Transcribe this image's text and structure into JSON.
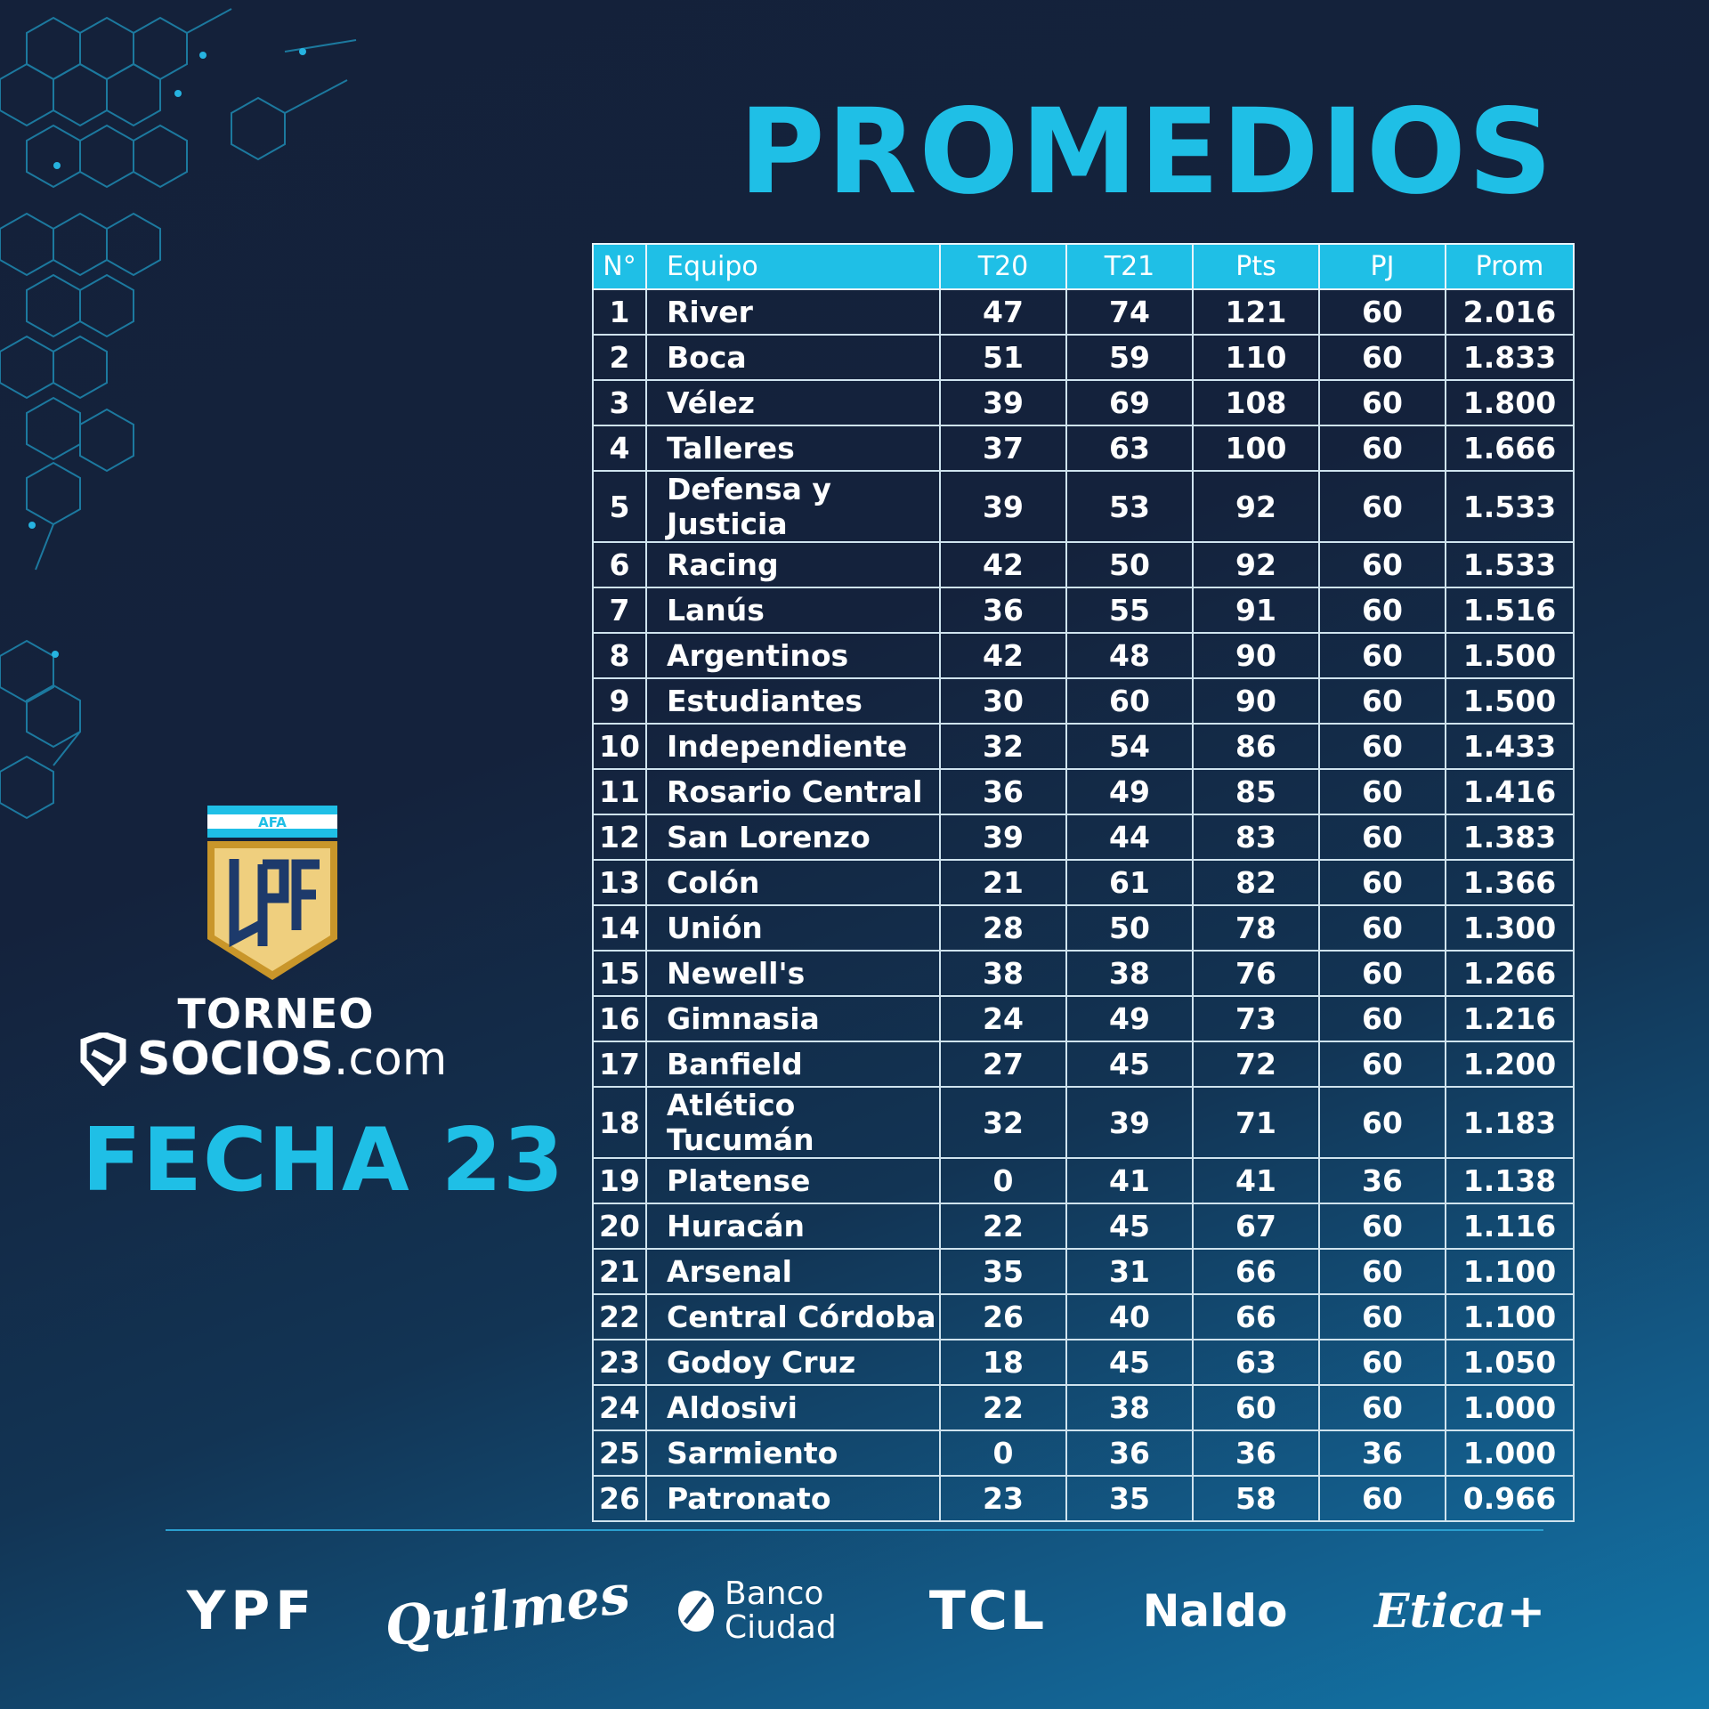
{
  "title": "PROMEDIOS",
  "table": {
    "headers": [
      "N°",
      "Equipo",
      "T20",
      "T21",
      "Pts",
      "PJ",
      "Prom"
    ],
    "rows": [
      [
        "1",
        "River",
        "47",
        "74",
        "121",
        "60",
        "2.016"
      ],
      [
        "2",
        "Boca",
        "51",
        "59",
        "110",
        "60",
        "1.833"
      ],
      [
        "3",
        "Vélez",
        "39",
        "69",
        "108",
        "60",
        "1.800"
      ],
      [
        "4",
        "Talleres",
        "37",
        "63",
        "100",
        "60",
        "1.666"
      ],
      [
        "5",
        "Defensa y Justicia",
        "39",
        "53",
        "92",
        "60",
        "1.533"
      ],
      [
        "6",
        "Racing",
        "42",
        "50",
        "92",
        "60",
        "1.533"
      ],
      [
        "7",
        "Lanús",
        "36",
        "55",
        "91",
        "60",
        "1.516"
      ],
      [
        "8",
        "Argentinos",
        "42",
        "48",
        "90",
        "60",
        "1.500"
      ],
      [
        "9",
        "Estudiantes",
        "30",
        "60",
        "90",
        "60",
        "1.500"
      ],
      [
        "10",
        "Independiente",
        "32",
        "54",
        "86",
        "60",
        "1.433"
      ],
      [
        "11",
        "Rosario Central",
        "36",
        "49",
        "85",
        "60",
        "1.416"
      ],
      [
        "12",
        "San Lorenzo",
        "39",
        "44",
        "83",
        "60",
        "1.383"
      ],
      [
        "13",
        "Colón",
        "21",
        "61",
        "82",
        "60",
        "1.366"
      ],
      [
        "14",
        "Unión",
        "28",
        "50",
        "78",
        "60",
        "1.300"
      ],
      [
        "15",
        "Newell's",
        "38",
        "38",
        "76",
        "60",
        "1.266"
      ],
      [
        "16",
        "Gimnasia",
        "24",
        "49",
        "73",
        "60",
        "1.216"
      ],
      [
        "17",
        "Banfield",
        "27",
        "45",
        "72",
        "60",
        "1.200"
      ],
      [
        "18",
        "Atlético Tucumán",
        "32",
        "39",
        "71",
        "60",
        "1.183"
      ],
      [
        "19",
        "Platense",
        "0",
        "41",
        "41",
        "36",
        "1.138"
      ],
      [
        "20",
        "Huracán",
        "22",
        "45",
        "67",
        "60",
        "1.116"
      ],
      [
        "21",
        "Arsenal",
        "35",
        "31",
        "66",
        "60",
        "1.100"
      ],
      [
        "22",
        "Central Córdoba",
        "26",
        "40",
        "66",
        "60",
        "1.100"
      ],
      [
        "23",
        "Godoy Cruz",
        "18",
        "45",
        "63",
        "60",
        "1.050"
      ],
      [
        "24",
        "Aldosivi",
        "22",
        "38",
        "60",
        "60",
        "1.000"
      ],
      [
        "25",
        "Sarmiento",
        "0",
        "36",
        "36",
        "36",
        "1.000"
      ],
      [
        "26",
        "Patronato",
        "23",
        "35",
        "58",
        "60",
        "0.966"
      ]
    ]
  },
  "logo": {
    "afa_text": "AFA",
    "lpf_text": "LPF"
  },
  "brand": {
    "torneo": "TORNEO",
    "socios_bold": "SOCIOS",
    "socios_rest": ".com"
  },
  "fecha": "FECHA 23",
  "sponsors": {
    "ypf": "YPF",
    "quilmes": "Quilmes",
    "banco_line1": "Banco",
    "banco_line2": "Ciudad",
    "tcl": "TCL",
    "naldo": "Naldo",
    "etica": "Etica+"
  },
  "colors": {
    "accent": "#1fbfe6",
    "background_dark": "#14213a",
    "background_light": "#1277a9",
    "shield_gold": "#e8c46a",
    "shield_navy": "#1d3a6b"
  }
}
